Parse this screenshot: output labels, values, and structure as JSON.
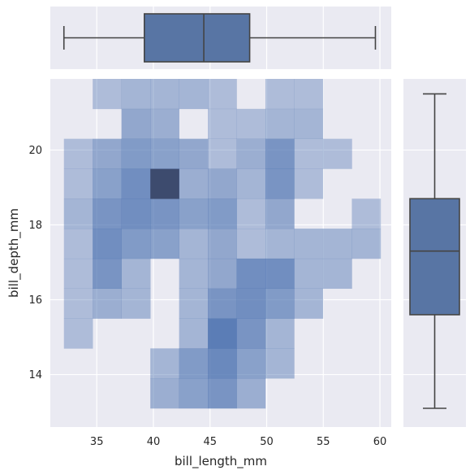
{
  "chart_data": [
    {
      "type": "heatmap",
      "panel": "joint",
      "xlabel": "bill_length_mm",
      "ylabel": "bill_depth_mm",
      "xlim": [
        30.9,
        61.0
      ],
      "ylim": [
        12.6,
        21.9
      ],
      "xticks": [
        35,
        40,
        45,
        50,
        55,
        60
      ],
      "yticks": [
        14,
        16,
        18,
        20
      ],
      "x_bin_edges": [
        32.1,
        34.64,
        37.18,
        39.73,
        42.27,
        44.81,
        47.35,
        49.89,
        52.43,
        54.97,
        57.52,
        60.06
      ],
      "y_bin_edges": [
        13.1,
        13.9,
        14.7,
        15.5,
        16.3,
        17.1,
        17.9,
        18.7,
        19.5,
        20.3,
        21.1,
        21.9
      ],
      "color": "#4c72b0",
      "grid": true,
      "counts": [
        [
          0,
          0,
          0,
          3,
          5,
          7,
          3,
          0,
          0,
          0,
          0
        ],
        [
          0,
          0,
          0,
          2,
          6,
          9,
          5,
          2,
          0,
          0,
          0
        ],
        [
          1,
          0,
          0,
          0,
          2,
          11,
          7,
          2,
          0,
          0,
          0
        ],
        [
          1,
          3,
          2,
          0,
          2,
          7,
          8,
          6,
          2,
          0,
          0
        ],
        [
          1,
          7,
          2,
          0,
          2,
          4,
          8,
          8,
          2,
          2,
          0
        ],
        [
          1,
          8,
          6,
          5,
          2,
          4,
          1,
          2,
          2,
          2,
          2
        ],
        [
          2,
          7,
          8,
          7,
          5,
          6,
          1,
          4,
          0,
          0,
          1
        ],
        [
          1,
          5,
          8,
          13,
          3,
          4,
          2,
          7,
          1,
          0,
          0
        ],
        [
          1,
          4,
          6,
          5,
          4,
          1,
          3,
          7,
          1,
          1,
          0
        ],
        [
          0,
          0,
          4,
          3,
          0,
          1,
          1,
          2,
          2,
          0,
          0
        ],
        [
          0,
          1,
          2,
          2,
          2,
          1,
          0,
          1,
          1,
          0,
          0
        ]
      ]
    },
    {
      "type": "box",
      "panel": "top-marginal",
      "variable": "bill_length_mm",
      "min": 32.1,
      "q1": 39.2,
      "median": 44.45,
      "q3": 48.5,
      "max": 59.6,
      "color": "#5875a4"
    },
    {
      "type": "box",
      "panel": "right-marginal",
      "variable": "bill_depth_mm",
      "min": 13.1,
      "q1": 15.6,
      "median": 17.3,
      "q3": 18.7,
      "max": 21.5,
      "color": "#5875a4"
    }
  ]
}
